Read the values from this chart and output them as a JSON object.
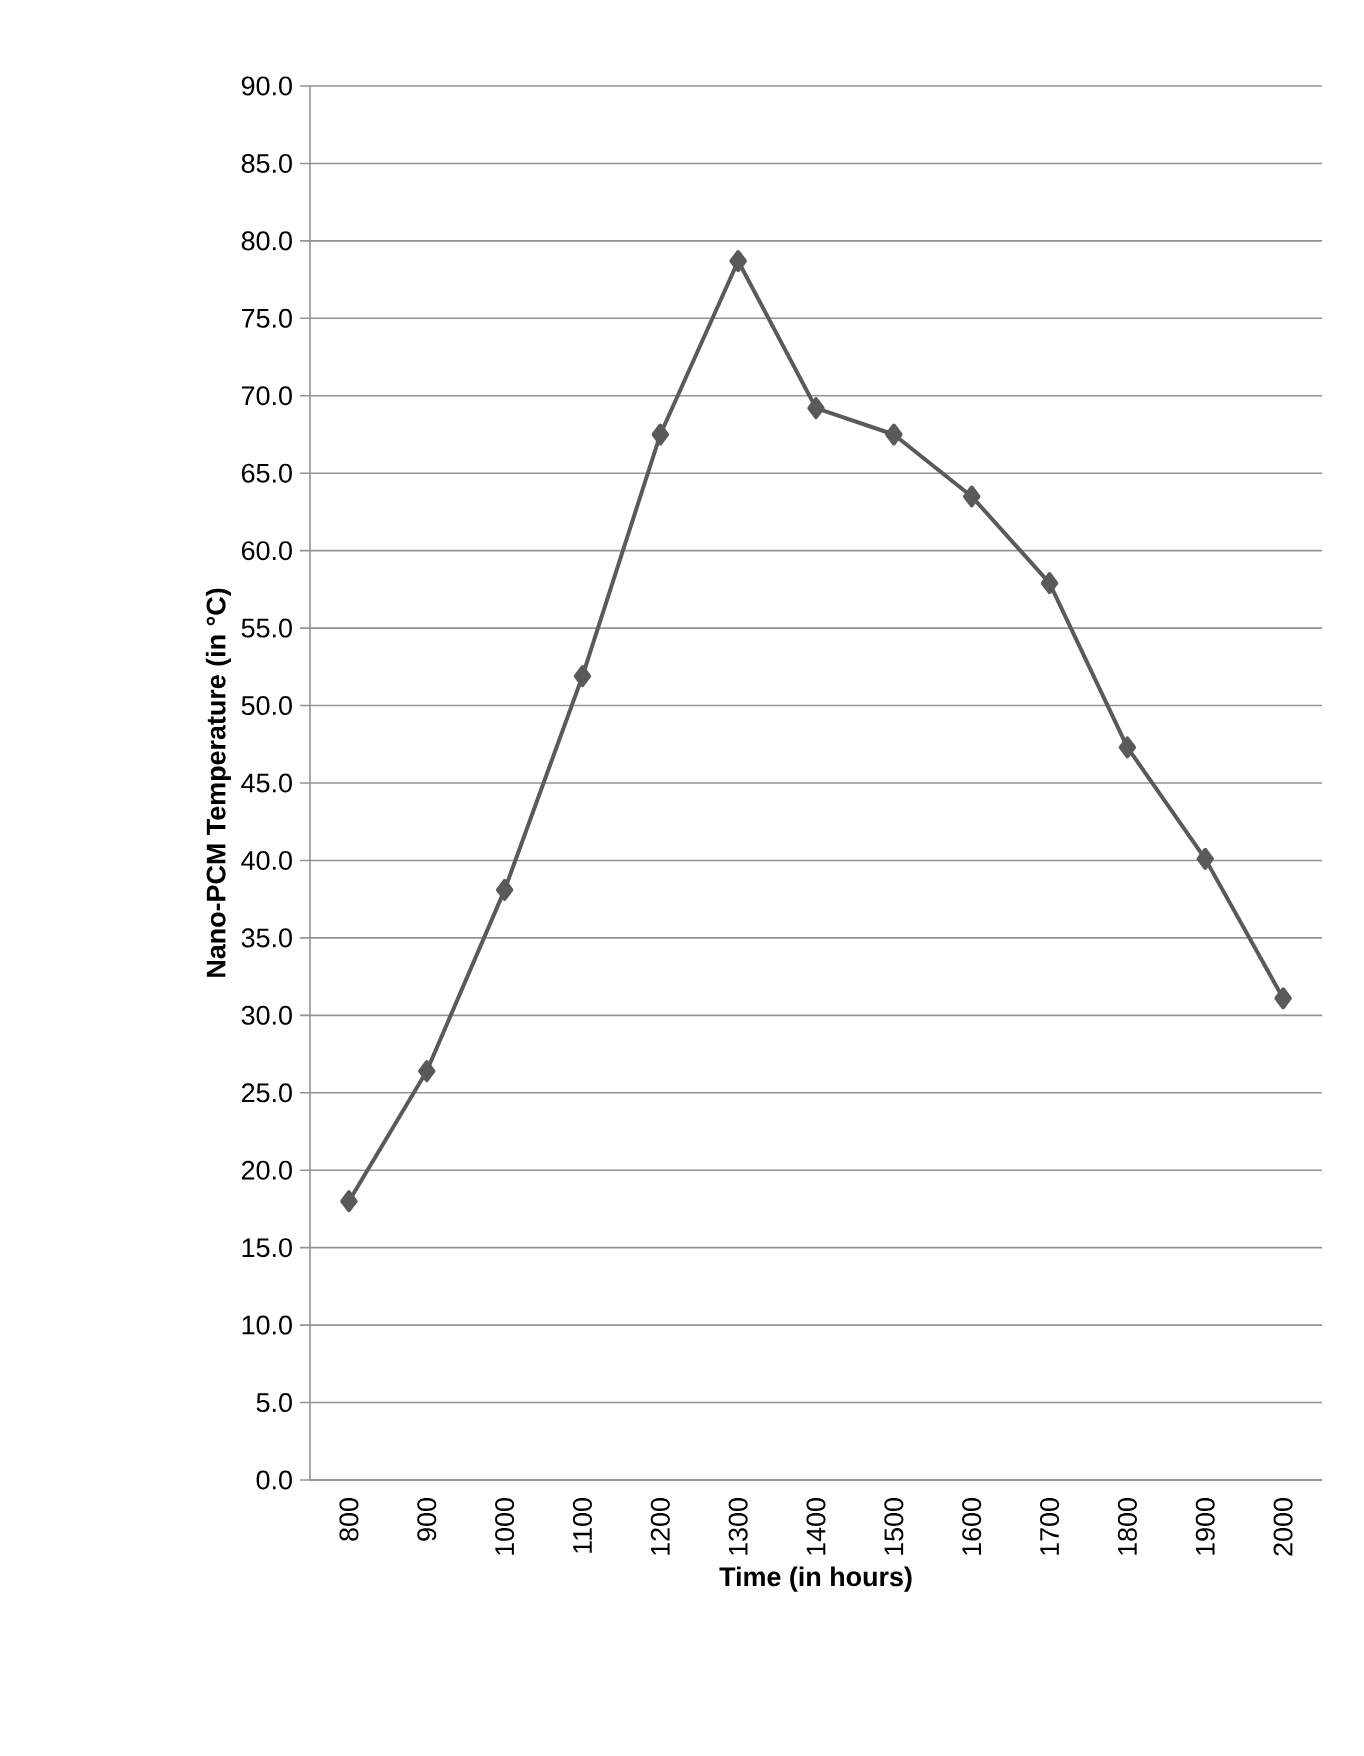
{
  "chart_data": {
    "type": "line",
    "xlabel": "Time (in hours)",
    "ylabel": "Nano-PCM  Temperature (in °C)",
    "categories": [
      "800",
      "900",
      "1000",
      "1100",
      "1200",
      "1300",
      "1400",
      "1500",
      "1600",
      "1700",
      "1800",
      "1900",
      "2000"
    ],
    "series": [
      {
        "color": "#5a5a5a",
        "values": [
          18.0,
          26.4,
          38.1,
          51.9,
          67.5,
          78.7,
          69.2,
          67.5,
          63.5,
          57.9,
          47.3,
          40.1,
          31.1
        ]
      }
    ],
    "ylim": [
      0,
      90
    ],
    "yticks": [
      {
        "value": 0,
        "label": "0.0"
      },
      {
        "value": 5,
        "label": "5.0"
      },
      {
        "value": 10,
        "label": "10.0"
      },
      {
        "value": 15,
        "label": "15.0"
      },
      {
        "value": 20,
        "label": "20.0"
      },
      {
        "value": 25,
        "label": "25.0"
      },
      {
        "value": 30,
        "label": "30.0"
      },
      {
        "value": 35,
        "label": "35.0"
      },
      {
        "value": 40,
        "label": "40.0"
      },
      {
        "value": 45,
        "label": "45.0"
      },
      {
        "value": 50,
        "label": "50.0"
      },
      {
        "value": 55,
        "label": "55.0"
      },
      {
        "value": 60,
        "label": "60.0"
      },
      {
        "value": 65,
        "label": "65.0"
      },
      {
        "value": 70,
        "label": "70.0"
      },
      {
        "value": 75,
        "label": "75.0"
      },
      {
        "value": 80,
        "label": "80.0"
      },
      {
        "value": 85,
        "label": "85.0"
      },
      {
        "value": 90,
        "label": "90.0"
      }
    ],
    "grid": "y",
    "marker": "diamond",
    "line_style": "solid"
  }
}
